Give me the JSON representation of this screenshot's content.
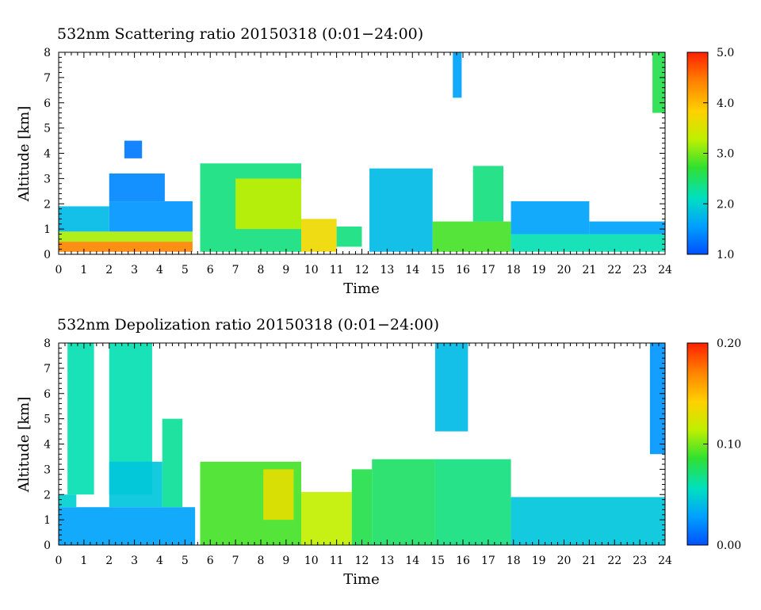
{
  "chart_data": [
    {
      "type": "heatmap",
      "title": "532nm Scattering ratio  20150318 (0:01−24:00)",
      "xlabel": "Time",
      "ylabel": "Altitude [km]",
      "xlim": [
        0,
        24
      ],
      "ylim": [
        0,
        8
      ],
      "x_ticks": [
        "0",
        "1",
        "2",
        "3",
        "4",
        "5",
        "6",
        "7",
        "8",
        "9",
        "10",
        "11",
        "12",
        "13",
        "14",
        "15",
        "16",
        "17",
        "18",
        "19",
        "20",
        "21",
        "22",
        "23",
        "24"
      ],
      "y_ticks": [
        "0",
        "1",
        "2",
        "3",
        "4",
        "5",
        "6",
        "7",
        "8"
      ],
      "colorbar": {
        "range": [
          1.0,
          5.0
        ],
        "tick_values": [
          1.0,
          2.0,
          3.0,
          4.0,
          5.0
        ],
        "tick_labels": [
          "1.0",
          "2.0",
          "3.0",
          "4.0",
          "5.0"
        ],
        "colors": [
          "#0050ff",
          "#00a0ff",
          "#00e0c0",
          "#30e030",
          "#c0f000",
          "#ffd000",
          "#ff8000",
          "#ff2000"
        ]
      },
      "regions": [
        {
          "t0": 0.0,
          "t1": 5.3,
          "z0": 0.1,
          "z1": 0.5,
          "value": 4.4
        },
        {
          "t0": 0.0,
          "t1": 5.3,
          "z0": 0.5,
          "z1": 0.9,
          "value": 3.2
        },
        {
          "t0": 0.0,
          "t1": 2.0,
          "z0": 0.9,
          "z1": 1.9,
          "value": 1.8
        },
        {
          "t0": 2.0,
          "t1": 5.3,
          "z0": 0.9,
          "z1": 2.1,
          "value": 1.5
        },
        {
          "t0": 2.0,
          "t1": 4.2,
          "z0": 2.1,
          "z1": 3.2,
          "value": 1.4
        },
        {
          "t0": 2.6,
          "t1": 3.3,
          "z0": 3.8,
          "z1": 4.5,
          "value": 1.3
        },
        {
          "t0": 5.6,
          "t1": 9.6,
          "z0": 0.1,
          "z1": 3.6,
          "value": 2.4
        },
        {
          "t0": 7.0,
          "t1": 9.6,
          "z0": 1.0,
          "z1": 3.0,
          "value": 3.3
        },
        {
          "t0": 9.6,
          "t1": 11.0,
          "z0": 0.1,
          "z1": 1.4,
          "value": 3.7
        },
        {
          "t0": 11.0,
          "t1": 12.0,
          "z0": 0.3,
          "z1": 1.1,
          "value": 2.4
        },
        {
          "t0": 12.3,
          "t1": 14.8,
          "z0": 0.1,
          "z1": 3.4,
          "value": 1.8
        },
        {
          "t0": 14.8,
          "t1": 17.9,
          "z0": 0.1,
          "z1": 1.3,
          "value": 2.8
        },
        {
          "t0": 16.4,
          "t1": 17.6,
          "z0": 1.3,
          "z1": 3.5,
          "value": 2.4
        },
        {
          "t0": 15.6,
          "t1": 15.95,
          "z0": 6.2,
          "z1": 8.0,
          "value": 1.6
        },
        {
          "t0": 17.9,
          "t1": 24.0,
          "z0": 0.1,
          "z1": 0.8,
          "value": 2.2
        },
        {
          "t0": 17.9,
          "t1": 21.0,
          "z0": 0.8,
          "z1": 2.1,
          "value": 1.6
        },
        {
          "t0": 21.0,
          "t1": 24.0,
          "z0": 0.8,
          "z1": 1.3,
          "value": 1.6
        },
        {
          "t0": 23.5,
          "t1": 24.0,
          "z0": 5.6,
          "z1": 8.0,
          "value": 2.6
        }
      ]
    },
    {
      "type": "heatmap",
      "title": "532nm Depolization ratio  20150318 (0:01−24:00)",
      "xlabel": "Time",
      "ylabel": "Altitude [km]",
      "xlim": [
        0,
        24
      ],
      "ylim": [
        0,
        8
      ],
      "x_ticks": [
        "0",
        "1",
        "2",
        "3",
        "4",
        "5",
        "6",
        "7",
        "8",
        "9",
        "10",
        "11",
        "12",
        "13",
        "14",
        "15",
        "16",
        "17",
        "18",
        "19",
        "20",
        "21",
        "22",
        "23",
        "24"
      ],
      "y_ticks": [
        "0",
        "1",
        "2",
        "3",
        "4",
        "5",
        "6",
        "7",
        "8"
      ],
      "colorbar": {
        "range": [
          0.0,
          0.2
        ],
        "tick_values": [
          0.0,
          0.1,
          0.2
        ],
        "tick_labels": [
          "0.00",
          "0.10",
          "0.20"
        ],
        "colors": [
          "#0050ff",
          "#00a0ff",
          "#00e0c0",
          "#30e030",
          "#c0f000",
          "#ffd000",
          "#ff8000",
          "#ff2000"
        ]
      },
      "regions": [
        {
          "t0": 0.0,
          "t1": 5.4,
          "z0": 0.0,
          "z1": 1.5,
          "value": 0.03
        },
        {
          "t0": 0.0,
          "t1": 0.7,
          "z0": 1.5,
          "z1": 2.0,
          "value": 0.05
        },
        {
          "t0": 0.35,
          "t1": 1.4,
          "z0": 2.0,
          "z1": 8.0,
          "value": 0.06
        },
        {
          "t0": 2.0,
          "t1": 3.7,
          "z0": 2.0,
          "z1": 8.0,
          "value": 0.06
        },
        {
          "t0": 2.0,
          "t1": 4.1,
          "z0": 1.5,
          "z1": 3.3,
          "value": 0.045
        },
        {
          "t0": 4.1,
          "t1": 4.9,
          "z0": 1.5,
          "z1": 5.0,
          "value": 0.065
        },
        {
          "t0": 5.6,
          "t1": 9.6,
          "z0": 0.0,
          "z1": 3.3,
          "value": 0.09
        },
        {
          "t0": 8.1,
          "t1": 9.3,
          "z0": 1.0,
          "z1": 3.0,
          "value": 0.13
        },
        {
          "t0": 9.6,
          "t1": 11.6,
          "z0": 0.0,
          "z1": 2.1,
          "value": 0.115
        },
        {
          "t0": 11.6,
          "t1": 12.4,
          "z0": 0.0,
          "z1": 3.0,
          "value": 0.08
        },
        {
          "t0": 12.4,
          "t1": 14.9,
          "z0": 0.0,
          "z1": 3.4,
          "value": 0.075
        },
        {
          "t0": 14.9,
          "t1": 16.2,
          "z0": 4.5,
          "z1": 8.0,
          "value": 0.04
        },
        {
          "t0": 14.9,
          "t1": 17.9,
          "z0": 0.0,
          "z1": 3.4,
          "value": 0.07
        },
        {
          "t0": 17.9,
          "t1": 24.0,
          "z0": 0.0,
          "z1": 1.9,
          "value": 0.045
        },
        {
          "t0": 23.4,
          "t1": 24.0,
          "z0": 3.6,
          "z1": 8.0,
          "value": 0.025
        }
      ]
    }
  ]
}
